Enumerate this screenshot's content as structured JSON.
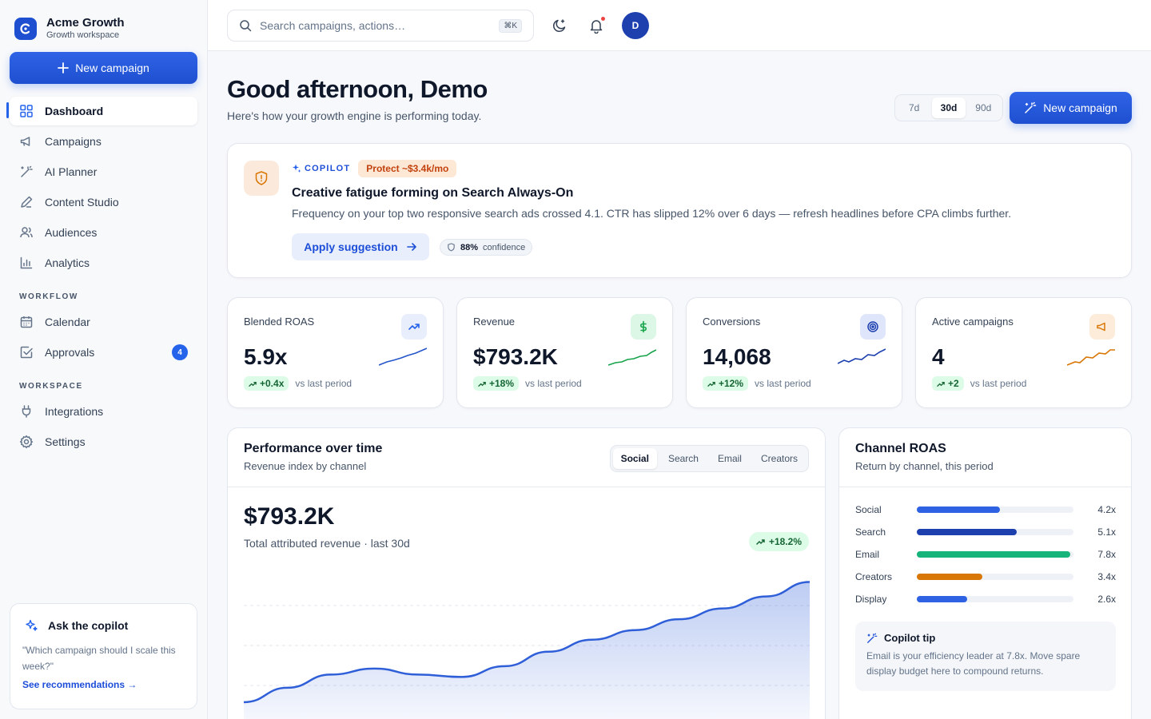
{
  "brand": {
    "name": "Acme Growth",
    "subtitle": "Growth workspace"
  },
  "sidebar": {
    "new_campaign": "New campaign",
    "nav": [
      {
        "label": "Dashboard",
        "icon": "grid-icon",
        "active": true
      },
      {
        "label": "Campaigns",
        "icon": "megaphone-icon"
      },
      {
        "label": "AI Planner",
        "icon": "wand-icon"
      },
      {
        "label": "Content Studio",
        "icon": "pen-icon"
      },
      {
        "label": "Audiences",
        "icon": "users-icon"
      },
      {
        "label": "Analytics",
        "icon": "bar-chart-icon"
      }
    ],
    "workflow_label": "WORKFLOW",
    "workflow": [
      {
        "label": "Calendar",
        "icon": "calendar-icon"
      },
      {
        "label": "Approvals",
        "icon": "check-square-icon",
        "badge": "4"
      }
    ],
    "workspace_label": "WORKSPACE",
    "workspace": [
      {
        "label": "Integrations",
        "icon": "plug-icon"
      },
      {
        "label": "Settings",
        "icon": "gear-icon"
      }
    ],
    "copilot": {
      "title": "Ask the copilot",
      "question": "\"Which campaign should I scale this week?\"",
      "link": "See recommendations →"
    }
  },
  "topbar": {
    "search_placeholder": "Search campaigns, actions…",
    "shortcut": "⌘K",
    "avatar_initial": "D"
  },
  "header": {
    "greeting": "Good afternoon, Demo",
    "subtitle": "Here's how your growth engine is performing today.",
    "ranges": [
      "7d",
      "30d",
      "90d"
    ],
    "selected_range": "30d",
    "new_campaign": "New campaign"
  },
  "alert": {
    "tag": "COPILOT",
    "impact": "Protect ~$3.4k/mo",
    "title": "Creative fatigue forming on Search Always-On",
    "body": "Frequency on your top two responsive search ads crossed 4.1. CTR has slipped 12% over 6 days — refresh headlines before CPA climbs further.",
    "action": "Apply suggestion",
    "confidence_value": "88%",
    "confidence_label": "confidence"
  },
  "kpis": [
    {
      "label": "Blended ROAS",
      "value": "5.9x",
      "delta": "+0.4x",
      "note": "vs last period",
      "color": "#2555c9",
      "icon": "trend-up-icon"
    },
    {
      "label": "Revenue",
      "value": "$793.2K",
      "delta": "+18%",
      "note": "vs last period",
      "color": "#16a34a",
      "icon": "dollar-icon"
    },
    {
      "label": "Conversions",
      "value": "14,068",
      "delta": "+12%",
      "note": "vs last period",
      "color": "#1e40af",
      "icon": "target-icon"
    },
    {
      "label": "Active campaigns",
      "value": "4",
      "delta": "+2",
      "note": "vs last period",
      "color": "#d97706",
      "icon": "megaphone-icon"
    }
  ],
  "performance": {
    "title": "Performance over time",
    "subtitle": "Revenue index by channel",
    "tabs": [
      "Social",
      "Search",
      "Email",
      "Creators"
    ],
    "selected_tab": "Social",
    "total": "$793.2K",
    "total_label": "Total attributed revenue · last 30d",
    "growth": "+18.2%",
    "chart_data": {
      "type": "area",
      "series": [
        {
          "values": [
            10,
            22,
            33,
            38,
            33,
            31,
            40,
            52,
            62,
            70,
            79,
            88,
            98,
            110
          ]
        }
      ],
      "color": "#2f5fd8"
    }
  },
  "channel_roas": {
    "title": "Channel ROAS",
    "subtitle": "Return by channel, this period",
    "rows": [
      {
        "name": "Social",
        "value": "4.2x",
        "fraction": 0.53,
        "color": "#2f62e3"
      },
      {
        "name": "Search",
        "value": "5.1x",
        "fraction": 0.64,
        "color": "#1e40af"
      },
      {
        "name": "Email",
        "value": "7.8x",
        "fraction": 0.98,
        "color": "#16b37a"
      },
      {
        "name": "Creators",
        "value": "3.4x",
        "fraction": 0.42,
        "color": "#d97706"
      },
      {
        "name": "Display",
        "value": "2.6x",
        "fraction": 0.32,
        "color": "#2f62e3"
      }
    ],
    "tip_title": "Copilot tip",
    "tip_body": "Email is your efficiency leader at 7.8x. Move spare display budget here to compound returns."
  }
}
